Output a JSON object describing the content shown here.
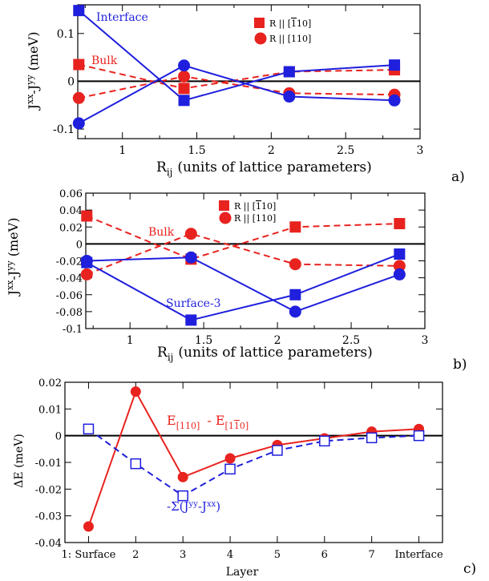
{
  "chart_data": [
    {
      "type": "line",
      "panel_label": "a)",
      "xlabel": "R",
      "xlabel_sub": "ij",
      "xlabel_rest": "(units of lattice parameters)",
      "ylabel": "J^xx - J^yy (meV)",
      "xlim": [
        0.7,
        3.0
      ],
      "ylim": [
        -0.12,
        0.16
      ],
      "xticks": [
        1,
        1.5,
        2,
        2.5,
        3
      ],
      "xtick_labels": [
        "1",
        "1.5",
        "2",
        "2.5",
        "3"
      ],
      "yticks": [
        -0.1,
        0,
        0.1
      ],
      "ytick_labels": [
        "-0.1",
        "0",
        "0.1"
      ],
      "legend": [
        "R || [ī10]",
        "R || [110]"
      ],
      "annotations": [
        {
          "text": "Interface",
          "color": "#1f1fdd"
        },
        {
          "text": "Bulk",
          "color": "#e8231f"
        }
      ],
      "series": [
        {
          "name": "",
          "color": "#e8231f",
          "dash": true,
          "marker": "square",
          "x": [
            0.707,
            1.414,
            2.121,
            2.828
          ],
          "y": [
            0.035,
            -0.015,
            0.02,
            0.024
          ]
        },
        {
          "name": "",
          "color": "#e8231f",
          "dash": true,
          "marker": "circle",
          "x": [
            0.707,
            1.414,
            2.121,
            2.828
          ],
          "y": [
            -0.035,
            0.01,
            -0.025,
            -0.028
          ]
        },
        {
          "name": "",
          "color": "#1f1fdd",
          "dash": false,
          "marker": "square",
          "x": [
            0.707,
            1.414,
            2.121,
            2.828
          ],
          "y": [
            0.148,
            -0.04,
            0.02,
            0.034
          ]
        },
        {
          "name": "",
          "color": "#1f1fdd",
          "dash": false,
          "marker": "circle",
          "x": [
            0.707,
            1.414,
            2.121,
            2.828
          ],
          "y": [
            -0.088,
            0.033,
            -0.032,
            -0.04
          ]
        }
      ]
    },
    {
      "type": "line",
      "panel_label": "b)",
      "xlabel": "R",
      "xlabel_sub": "ij",
      "xlabel_rest": "(units of lattice parameters)",
      "ylabel": "J^xx - J^yy (meV)",
      "xlim": [
        0.7,
        3.0
      ],
      "ylim": [
        -0.1,
        0.06
      ],
      "xticks": [
        1,
        1.5,
        2,
        2.5,
        3
      ],
      "xtick_labels": [
        "1",
        "1.5",
        "2",
        "2.5",
        "3"
      ],
      "yticks": [
        -0.1,
        -0.08,
        -0.06,
        -0.04,
        -0.02,
        0,
        0.02,
        0.04,
        0.06
      ],
      "ytick_labels": [
        "-0.1",
        "-0.08",
        "-0.06",
        "-0.04",
        "-0.02",
        "0",
        "0.02",
        "0.04",
        "0.06"
      ],
      "legend": [
        "R || [ī10]",
        "R || [110]"
      ],
      "annotations": [
        {
          "text": "Bulk",
          "color": "#e8231f"
        },
        {
          "text": "Surface-3",
          "color": "#1f1fdd"
        }
      ],
      "series": [
        {
          "name": "",
          "color": "#e8231f",
          "dash": true,
          "marker": "square",
          "x": [
            0.707,
            1.414,
            2.121,
            2.828
          ],
          "y": [
            0.033,
            -0.018,
            0.02,
            0.024
          ]
        },
        {
          "name": "",
          "color": "#e8231f",
          "dash": true,
          "marker": "circle",
          "x": [
            0.707,
            1.414,
            2.121,
            2.828
          ],
          "y": [
            -0.036,
            0.012,
            -0.024,
            -0.026
          ]
        },
        {
          "name": "",
          "color": "#1f1fdd",
          "dash": false,
          "marker": "square",
          "x": [
            0.707,
            1.414,
            2.121,
            2.828
          ],
          "y": [
            -0.022,
            -0.09,
            -0.06,
            -0.012
          ]
        },
        {
          "name": "",
          "color": "#1f1fdd",
          "dash": false,
          "marker": "circle",
          "x": [
            0.707,
            1.414,
            2.121,
            2.828
          ],
          "y": [
            -0.02,
            -0.016,
            -0.08,
            -0.036
          ]
        }
      ]
    },
    {
      "type": "line",
      "panel_label": "c)",
      "xlabel": "Layer",
      "ylabel": "ΔE (meV)",
      "xlim": [
        0.5,
        8.5
      ],
      "ylim": [
        -0.04,
        0.02
      ],
      "xticks": [
        1,
        2,
        3,
        4,
        5,
        6,
        7,
        8
      ],
      "xtick_labels": [
        "1: Surface",
        "2",
        "3",
        "4",
        "5",
        "6",
        "7",
        "Interface"
      ],
      "yticks": [
        -0.04,
        -0.03,
        -0.02,
        -0.01,
        0,
        0.01,
        0.02
      ],
      "ytick_labels": [
        "-0.04",
        "-0.03",
        "-0.02",
        "-0.01",
        "0",
        "0.01",
        "0.02"
      ],
      "annotations": [
        {
          "text": "E[110] - E[1ī0]",
          "color": "#e8231f"
        },
        {
          "text": "-Σ(J^yy - J^xx)",
          "color": "#1f1fdd"
        }
      ],
      "series": [
        {
          "name": "",
          "color": "#e8231f",
          "dash": false,
          "marker": "circle",
          "x": [
            1,
            2,
            3,
            4,
            5,
            6,
            7,
            8
          ],
          "y": [
            -0.034,
            0.0165,
            -0.0155,
            -0.0085,
            -0.0035,
            -0.001,
            0.0015,
            0.0025
          ]
        },
        {
          "name": "",
          "color": "#1f1fdd",
          "dash": true,
          "marker": "open-square",
          "x": [
            1,
            2,
            3,
            4,
            5,
            6,
            7,
            8
          ],
          "y": [
            0.0025,
            -0.0105,
            -0.0225,
            -0.0125,
            -0.0055,
            -0.002,
            -0.0008,
            0.0
          ]
        }
      ]
    }
  ]
}
